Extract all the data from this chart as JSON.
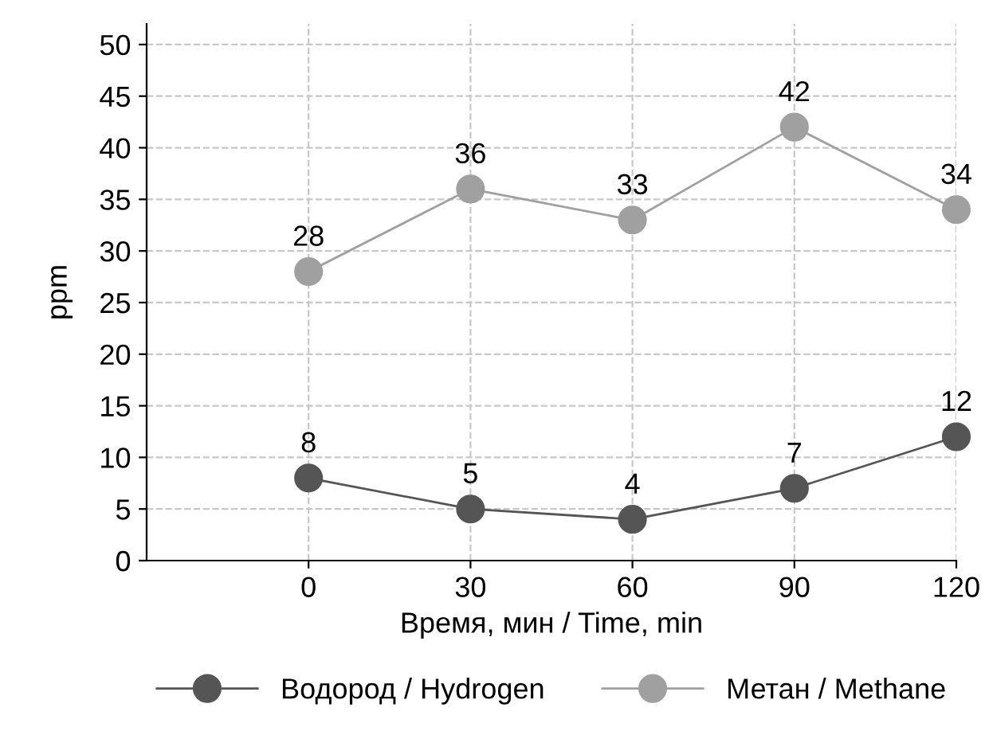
{
  "chart_data": {
    "type": "line",
    "xlabel": "Время, мин / Time, min",
    "ylabel": "ppm",
    "x": [
      0,
      30,
      60,
      90,
      120
    ],
    "series": [
      {
        "name": "Водород / Hydrogen",
        "color": "#555555",
        "values": [
          8,
          5,
          4,
          7,
          12
        ]
      },
      {
        "name": "Метан / Methane",
        "color": "#a0a0a0",
        "values": [
          28,
          36,
          33,
          42,
          34
        ]
      }
    ],
    "xlim": [
      -30,
      120
    ],
    "xticks": [
      0,
      30,
      60,
      90,
      120
    ],
    "ylim": [
      0,
      52
    ],
    "yticks": [
      0,
      5,
      10,
      15,
      20,
      25,
      30,
      35,
      40,
      45,
      50
    ],
    "grid": true,
    "legend": "bottom",
    "marker": "circle",
    "line_style": "solid",
    "data_labels": true
  }
}
